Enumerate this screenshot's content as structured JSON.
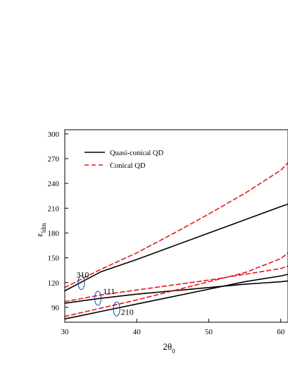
{
  "chart_data": {
    "type": "line",
    "title": "",
    "xlabel": "2θ0",
    "ylabel": "εldm",
    "xlim": [
      30,
      61
    ],
    "ylim": [
      72,
      305
    ],
    "xticks": [
      30,
      40,
      50,
      60
    ],
    "yticks": [
      90,
      120,
      150,
      180,
      210,
      240,
      270,
      300
    ],
    "grid": false,
    "legend_position": "top-left",
    "legend": [
      {
        "label": "Quasi-conical QD",
        "color": "#000000",
        "style": "solid"
      },
      {
        "label": "Conical QD",
        "color": "#e41a1c",
        "style": "dashed"
      }
    ],
    "series": [
      {
        "family": "310",
        "legend_group": "Quasi-conical QD",
        "color": "#000000",
        "style": "solid",
        "x": [
          30,
          35,
          40,
          45,
          50,
          55,
          60,
          61
        ],
        "y": [
          110,
          133,
          148,
          164,
          180,
          196,
          212,
          215
        ]
      },
      {
        "family": "310",
        "legend_group": "Conical QD",
        "color": "#e41a1c",
        "style": "dashed",
        "x": [
          30,
          35,
          40,
          45,
          50,
          55,
          60,
          61
        ],
        "y": [
          114,
          136,
          156,
          179,
          203,
          228,
          256,
          265
        ]
      },
      {
        "family": "111",
        "legend_group": "Quasi-conical QD",
        "color": "#000000",
        "style": "solid",
        "x": [
          30,
          35,
          40,
          45,
          50,
          55,
          60,
          61
        ],
        "y": [
          95,
          101,
          106,
          110,
          114,
          118,
          121,
          122
        ]
      },
      {
        "family": "111",
        "legend_group": "Conical QD",
        "color": "#e41a1c",
        "style": "dashed",
        "x": [
          30,
          35,
          40,
          45,
          50,
          55,
          60,
          61
        ],
        "y": [
          97,
          105,
          111,
          117,
          123,
          130,
          137,
          140
        ]
      },
      {
        "family": "210",
        "legend_group": "Quasi-conical QD",
        "color": "#000000",
        "style": "solid",
        "x": [
          30,
          35,
          40,
          45,
          50,
          55,
          60,
          61
        ],
        "y": [
          76,
          85,
          94,
          103,
          112,
          121,
          128,
          130
        ]
      },
      {
        "family": "210",
        "legend_group": "Conical QD",
        "color": "#e41a1c",
        "style": "dashed",
        "x": [
          30,
          35,
          40,
          45,
          50,
          55,
          60,
          61
        ],
        "y": [
          79,
          89,
          99,
          110,
          121,
          132,
          149,
          156
        ]
      }
    ],
    "annotations": [
      {
        "text": "310",
        "x": 31.6,
        "y": 126,
        "ellipse_center": [
          32.3,
          120
        ]
      },
      {
        "text": "111",
        "x": 35.3,
        "y": 106,
        "ellipse_center": [
          34.6,
          101
        ]
      },
      {
        "text": "210",
        "x": 37.8,
        "y": 81,
        "ellipse_center": [
          37.2,
          88
        ]
      }
    ]
  }
}
